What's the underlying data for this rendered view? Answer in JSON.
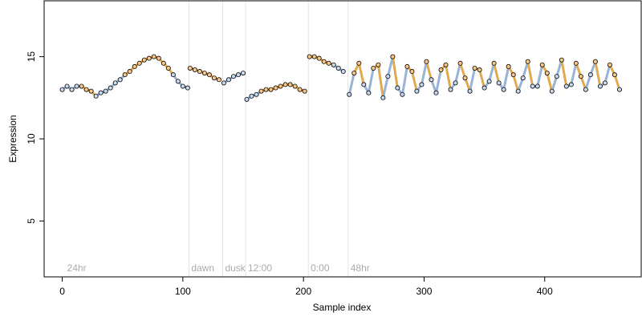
{
  "chart_data": {
    "type": "scatter",
    "title": "",
    "xlabel": "Sample index",
    "ylabel": "Expression",
    "xlim": [
      -15,
      480
    ],
    "ylim": [
      1.6,
      18.4
    ],
    "x_ticks": [
      0,
      100,
      200,
      300,
      400
    ],
    "y_ticks": [
      5,
      10,
      15
    ],
    "grid": false,
    "box": true,
    "colors": {
      "light_phase": "#f5a623",
      "dark_phase": "#8eb4e3",
      "fit_line": "#999999",
      "point_fill_light": "#f7c78a",
      "point_fill_dark": "#c7d8ef",
      "marker_line": "#e3e3e3",
      "marker_text": "#aaaaaa"
    },
    "time_markers": [
      {
        "label": "24hr",
        "x": 2
      },
      {
        "label": "dawn",
        "x": 105
      },
      {
        "label": "dusk",
        "x": 133
      },
      {
        "label": "12:00",
        "x": 152
      },
      {
        "label": "0:00",
        "x": 204
      },
      {
        "label": "48hr",
        "x": 237
      }
    ],
    "marker_lines_x": [
      105,
      133,
      152,
      204,
      237
    ],
    "series": [
      {
        "segment": "24hr-dawn",
        "x": [
          0,
          4,
          8,
          12,
          16,
          20,
          24,
          28,
          32,
          36,
          40,
          44,
          48,
          52,
          56,
          60,
          64,
          68,
          72,
          76,
          80,
          84,
          88,
          92,
          96,
          100,
          104
        ],
        "y": [
          13.0,
          13.2,
          13.0,
          13.2,
          13.2,
          13.0,
          12.9,
          12.6,
          12.8,
          12.9,
          13.1,
          13.4,
          13.6,
          13.9,
          14.1,
          14.4,
          14.6,
          14.8,
          14.9,
          15.0,
          14.9,
          14.6,
          14.3,
          13.9,
          13.5,
          13.2,
          13.1
        ],
        "phase": [
          "dark",
          "dark",
          "dark",
          "dark",
          "light",
          "light",
          "light",
          "dark",
          "dark",
          "dark",
          "dark",
          "dark",
          "dark",
          "light",
          "light",
          "light",
          "light",
          "light",
          "light",
          "light",
          "light",
          "light",
          "light",
          "dark",
          "dark",
          "dark",
          "dark"
        ]
      },
      {
        "segment": "dawn-dusk",
        "x": [
          106,
          110,
          114,
          118,
          122,
          126,
          130
        ],
        "y": [
          14.3,
          14.2,
          14.1,
          14.0,
          13.9,
          13.7,
          13.6
        ],
        "phase": [
          "light",
          "light",
          "light",
          "light",
          "light",
          "light",
          "light"
        ]
      },
      {
        "segment": "dusk-12:00",
        "x": [
          134,
          138,
          142,
          146,
          150
        ],
        "y": [
          13.4,
          13.6,
          13.8,
          13.9,
          14.0
        ],
        "phase": [
          "dark",
          "dark",
          "dark",
          "dark",
          "dark"
        ]
      },
      {
        "segment": "12:00-0:00",
        "x": [
          153,
          157,
          161,
          165,
          169,
          173,
          177,
          181,
          185,
          189,
          193,
          197,
          201
        ],
        "y": [
          12.4,
          12.6,
          12.7,
          12.9,
          13.0,
          13.0,
          13.1,
          13.2,
          13.3,
          13.3,
          13.2,
          13.0,
          12.9
        ],
        "phase": [
          "dark",
          "dark",
          "dark",
          "light",
          "light",
          "light",
          "light",
          "light",
          "light",
          "light",
          "light",
          "light",
          "light"
        ]
      },
      {
        "segment": "0:00-48hr",
        "x": [
          205,
          209,
          213,
          217,
          221,
          225,
          229,
          233
        ],
        "y": [
          15.0,
          15.0,
          14.9,
          14.7,
          14.6,
          14.5,
          14.3,
          14.1
        ],
        "phase": [
          "light",
          "light",
          "light",
          "light",
          "light",
          "dark",
          "dark",
          "dark"
        ]
      },
      {
        "segment": "48hr-end",
        "x": [
          238,
          242,
          246,
          250,
          254,
          258,
          262,
          266,
          270,
          274,
          278,
          282,
          286,
          290,
          294,
          298,
          302,
          306,
          310,
          314,
          318,
          322,
          326,
          330,
          334,
          338,
          342,
          346,
          350,
          354,
          358,
          362,
          366,
          370,
          374,
          378,
          382,
          386,
          390,
          394,
          398,
          402,
          406,
          410,
          414,
          418,
          422,
          426,
          430,
          434,
          438,
          442,
          446,
          450,
          454,
          458,
          462
        ],
        "y": [
          12.7,
          14.0,
          14.6,
          13.3,
          12.8,
          14.3,
          14.5,
          12.5,
          13.8,
          15.0,
          13.1,
          12.7,
          14.4,
          14.1,
          12.9,
          13.3,
          14.7,
          13.6,
          12.8,
          14.2,
          14.5,
          13.0,
          13.4,
          14.6,
          13.7,
          12.9,
          14.3,
          14.2,
          13.1,
          13.5,
          14.6,
          13.4,
          13.0,
          14.4,
          13.9,
          12.9,
          13.7,
          14.7,
          13.2,
          13.2,
          14.5,
          14.0,
          12.9,
          13.8,
          14.8,
          13.2,
          13.3,
          14.6,
          13.8,
          13.0,
          13.9,
          14.7,
          13.2,
          13.4,
          14.5,
          13.9,
          13.0
        ],
        "phase": [
          "dark",
          "light",
          "light",
          "dark",
          "dark",
          "light",
          "light",
          "dark",
          "dark",
          "light",
          "dark",
          "dark",
          "light",
          "light",
          "dark",
          "dark",
          "light",
          "dark",
          "dark",
          "light",
          "light",
          "dark",
          "dark",
          "light",
          "light",
          "dark",
          "light",
          "light",
          "dark",
          "dark",
          "light",
          "dark",
          "dark",
          "light",
          "light",
          "dark",
          "dark",
          "light",
          "dark",
          "dark",
          "light",
          "light",
          "dark",
          "dark",
          "light",
          "dark",
          "dark",
          "light",
          "light",
          "dark",
          "dark",
          "light",
          "dark",
          "dark",
          "light",
          "light",
          "dark"
        ]
      }
    ]
  }
}
